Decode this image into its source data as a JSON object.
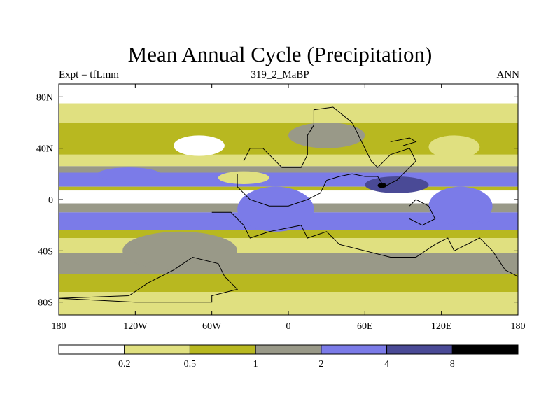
{
  "chart_data": {
    "type": "heatmap",
    "title": "Mean Annual Cycle (Precipitation)",
    "left_label": "Expt = tfLmm",
    "center_label": "319_2_MaBP",
    "right_label": "ANN",
    "x_ticks": [
      "180",
      "120W",
      "60W",
      "0",
      "60E",
      "120E",
      "180"
    ],
    "y_ticks": [
      "80N",
      "40N",
      "0",
      "40S",
      "80S"
    ],
    "xlim": [
      -180,
      180
    ],
    "ylim": [
      -90,
      90
    ],
    "legend": {
      "levels": [
        "0.2",
        "0.5",
        "1",
        "2",
        "4",
        "8"
      ],
      "colors": [
        "#ffffff",
        "#e0e080",
        "#b8b820",
        "#999988",
        "#7b7be8",
        "#4a4a96",
        "#000000"
      ]
    },
    "zonal_bands": [
      {
        "lat_from": 90,
        "lat_to": 75,
        "level_index": 0
      },
      {
        "lat_from": 75,
        "lat_to": 60,
        "level_index": 1
      },
      {
        "lat_from": 60,
        "lat_to": 35,
        "level_index": 2
      },
      {
        "lat_from": 35,
        "lat_to": 26,
        "level_index": 1
      },
      {
        "lat_from": 26,
        "lat_to": 21,
        "level_index": 3
      },
      {
        "lat_from": 21,
        "lat_to": 10,
        "level_index": 4
      },
      {
        "lat_from": 10,
        "lat_to": 7,
        "level_index": 2
      },
      {
        "lat_from": 7,
        "lat_to": -3,
        "level_index": 0
      },
      {
        "lat_from": -3,
        "lat_to": -10,
        "level_index": 3
      },
      {
        "lat_from": -10,
        "lat_to": -24,
        "level_index": 4
      },
      {
        "lat_from": -24,
        "lat_to": -30,
        "level_index": 2
      },
      {
        "lat_from": -30,
        "lat_to": -42,
        "level_index": 1
      },
      {
        "lat_from": -42,
        "lat_to": -58,
        "level_index": 3
      },
      {
        "lat_from": -58,
        "lat_to": -72,
        "level_index": 2
      },
      {
        "lat_from": -72,
        "lat_to": -90,
        "level_index": 1
      }
    ],
    "regional_patches": [
      {
        "lon": [
          -150,
          -100
        ],
        "lat": [
          25,
          14
        ],
        "level_index": 4
      },
      {
        "lon": [
          -40,
          20
        ],
        "lat": [
          10,
          -25
        ],
        "level_index": 4
      },
      {
        "lon": [
          60,
          110
        ],
        "lat": [
          18,
          5
        ],
        "level_index": 5
      },
      {
        "lon": [
          70,
          77
        ],
        "lat": [
          13,
          9
        ],
        "level_index": 6
      },
      {
        "lon": [
          110,
          160
        ],
        "lat": [
          10,
          -20
        ],
        "level_index": 4
      },
      {
        "lon": [
          -130,
          -40
        ],
        "lat": [
          -25,
          -55
        ],
        "level_index": 3
      },
      {
        "lon": [
          -55,
          -15
        ],
        "lat": [
          22,
          12
        ],
        "level_index": 1
      },
      {
        "lon": [
          0,
          60
        ],
        "lat": [
          60,
          40
        ],
        "level_index": 3
      },
      {
        "lon": [
          -90,
          -50
        ],
        "lat": [
          50,
          34
        ],
        "level_index": 0
      },
      {
        "lon": [
          110,
          150
        ],
        "lat": [
          50,
          32
        ],
        "level_index": 1
      }
    ],
    "land_outlines": [
      {
        "name": "northern-continent",
        "points": [
          [
            -35,
            30
          ],
          [
            -30,
            40
          ],
          [
            -20,
            40
          ],
          [
            -15,
            35
          ],
          [
            -5,
            25
          ],
          [
            10,
            25
          ],
          [
            15,
            35
          ],
          [
            15,
            50
          ],
          [
            20,
            58
          ],
          [
            20,
            70
          ],
          [
            35,
            72
          ],
          [
            50,
            60
          ],
          [
            60,
            40
          ],
          [
            65,
            30
          ],
          [
            70,
            25
          ],
          [
            80,
            35
          ],
          [
            95,
            40
          ],
          [
            100,
            30
          ],
          [
            90,
            20
          ],
          [
            85,
            15
          ],
          [
            75,
            10
          ],
          [
            70,
            18
          ],
          [
            60,
            18
          ],
          [
            50,
            20
          ],
          [
            40,
            18
          ],
          [
            30,
            15
          ],
          [
            25,
            5
          ],
          [
            15,
            0
          ],
          [
            0,
            -5
          ],
          [
            -15,
            -5
          ],
          [
            -30,
            0
          ],
          [
            -40,
            10
          ],
          [
            -40,
            20
          ]
        ]
      },
      {
        "name": "southern-continent",
        "points": [
          [
            -60,
            -10
          ],
          [
            -45,
            -10
          ],
          [
            -35,
            -20
          ],
          [
            -30,
            -30
          ],
          [
            -15,
            -25
          ],
          [
            10,
            -20
          ],
          [
            15,
            -30
          ],
          [
            30,
            -25
          ],
          [
            40,
            -35
          ],
          [
            60,
            -40
          ],
          [
            80,
            -45
          ],
          [
            100,
            -45
          ],
          [
            115,
            -35
          ],
          [
            125,
            -30
          ],
          [
            130,
            -40
          ],
          [
            140,
            -35
          ],
          [
            150,
            -30
          ],
          [
            160,
            -40
          ],
          [
            170,
            -55
          ],
          [
            180,
            -60
          ]
        ]
      },
      {
        "name": "south-polar-coast",
        "points": [
          [
            -180,
            -77
          ],
          [
            -120,
            -80
          ],
          [
            -60,
            -80
          ],
          [
            -60,
            -75
          ],
          [
            -40,
            -70
          ],
          [
            -50,
            -60
          ],
          [
            -55,
            -50
          ],
          [
            -75,
            -45
          ],
          [
            -90,
            -55
          ],
          [
            -110,
            -65
          ],
          [
            -125,
            -75
          ],
          [
            -180,
            -77
          ]
        ]
      },
      {
        "name": "island-east",
        "points": [
          [
            95,
            -5
          ],
          [
            100,
            0
          ],
          [
            110,
            -5
          ],
          [
            115,
            -15
          ],
          [
            105,
            -20
          ],
          [
            95,
            -15
          ]
        ]
      },
      {
        "name": "island-northeast",
        "points": [
          [
            80,
            45
          ],
          [
            95,
            48
          ],
          [
            100,
            45
          ],
          [
            90,
            42
          ]
        ]
      }
    ]
  }
}
